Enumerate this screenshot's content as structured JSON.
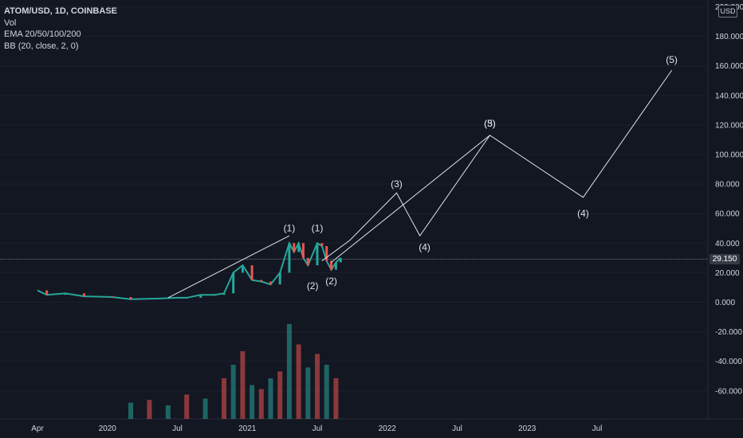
{
  "legend": {
    "symbol": "ATOM/USD, 1D, COINBASE",
    "volume": "Vol",
    "ema": "EMA 20/50/100/200",
    "bb": "BB (20, close, 2, 0)"
  },
  "toolbar": {
    "currency_button": "USD"
  },
  "price_tag": "29.150",
  "colors": {
    "background": "#131722",
    "axis_text": "#d1d4dc",
    "up": "#26a69a",
    "down": "#ef5350",
    "wave_line": "#e0e3eb",
    "price_line": "#787b86"
  },
  "chart_data": {
    "type": "line",
    "title": "",
    "xlabel": "",
    "ylabel": "",
    "y_axis_ticks": [
      "200.000",
      "180.000",
      "160.000",
      "140.000",
      "120.000",
      "100.000",
      "80.000",
      "60.000",
      "40.000",
      "20.000",
      "0.000",
      "-20.000",
      "-40.000",
      "-60.000"
    ],
    "x_axis_ticks": [
      "Apr",
      "2020",
      "Jul",
      "2021",
      "Jul",
      "2022",
      "Jul",
      "2023",
      "Jul"
    ],
    "ylim": [
      -78,
      204
    ],
    "current_price": 29.15,
    "price_series": [
      {
        "t": 0.0,
        "v": 8
      },
      {
        "t": 0.1,
        "v": 5
      },
      {
        "t": 0.3,
        "v": 6
      },
      {
        "t": 0.5,
        "v": 4
      },
      {
        "t": 0.8,
        "v": 3.5
      },
      {
        "t": 1.0,
        "v": 2
      },
      {
        "t": 1.3,
        "v": 2.5
      },
      {
        "t": 1.5,
        "v": 3
      },
      {
        "t": 1.6,
        "v": 3
      },
      {
        "t": 1.75,
        "v": 5
      },
      {
        "t": 1.9,
        "v": 5
      },
      {
        "t": 2.0,
        "v": 6
      },
      {
        "t": 2.1,
        "v": 20
      },
      {
        "t": 2.2,
        "v": 25
      },
      {
        "t": 2.3,
        "v": 15
      },
      {
        "t": 2.4,
        "v": 14
      },
      {
        "t": 2.5,
        "v": 12
      },
      {
        "t": 2.6,
        "v": 20
      },
      {
        "t": 2.7,
        "v": 40
      },
      {
        "t": 2.75,
        "v": 34
      },
      {
        "t": 2.8,
        "v": 40
      },
      {
        "t": 2.85,
        "v": 30
      },
      {
        "t": 2.9,
        "v": 25
      },
      {
        "t": 3.0,
        "v": 40
      },
      {
        "t": 3.05,
        "v": 38
      },
      {
        "t": 3.1,
        "v": 28
      },
      {
        "t": 3.15,
        "v": 22
      },
      {
        "t": 3.2,
        "v": 27
      },
      {
        "t": 3.25,
        "v": 30
      }
    ],
    "wave_lines": [
      [
        {
          "t": 1.4,
          "v": 3
        },
        {
          "t": 2.7,
          "v": 45
        }
      ],
      [
        {
          "t": 3.05,
          "v": 28
        },
        {
          "t": 3.35,
          "v": 42
        },
        {
          "t": 3.85,
          "v": 74
        },
        {
          "t": 4.1,
          "v": 45
        },
        {
          "t": 4.85,
          "v": 113
        }
      ],
      [
        {
          "t": 3.15,
          "v": 27
        },
        {
          "t": 4.85,
          "v": 113
        },
        {
          "t": 5.85,
          "v": 71
        },
        {
          "t": 6.8,
          "v": 157
        }
      ]
    ],
    "wave_labels": [
      {
        "text": "(1)",
        "t": 2.7,
        "v": 48
      },
      {
        "text": "(1)",
        "t": 3.0,
        "v": 48
      },
      {
        "text": "(2)",
        "t": 2.95,
        "v": 9
      },
      {
        "text": "(2)",
        "t": 3.15,
        "v": 12
      },
      {
        "text": "(3)",
        "t": 3.85,
        "v": 78
      },
      {
        "text": "(4)",
        "t": 4.15,
        "v": 35
      },
      {
        "text": "(5)",
        "t": 4.85,
        "v": 119
      },
      {
        "text": "(3)",
        "t": 4.85,
        "v": 119
      },
      {
        "text": "(4)",
        "t": 5.85,
        "v": 58
      },
      {
        "text": "(5)",
        "t": 6.8,
        "v": 162
      }
    ],
    "volume_bars": [
      {
        "t": 1.0,
        "v": 12
      },
      {
        "t": 1.2,
        "v": 14
      },
      {
        "t": 1.4,
        "v": 10
      },
      {
        "t": 1.6,
        "v": 18
      },
      {
        "t": 1.8,
        "v": 15
      },
      {
        "t": 2.0,
        "v": 30
      },
      {
        "t": 2.1,
        "v": 40
      },
      {
        "t": 2.2,
        "v": 50
      },
      {
        "t": 2.3,
        "v": 25
      },
      {
        "t": 2.4,
        "v": 22
      },
      {
        "t": 2.5,
        "v": 30
      },
      {
        "t": 2.6,
        "v": 35
      },
      {
        "t": 2.7,
        "v": 70
      },
      {
        "t": 2.8,
        "v": 55
      },
      {
        "t": 2.9,
        "v": 38
      },
      {
        "t": 3.0,
        "v": 48
      },
      {
        "t": 3.1,
        "v": 40
      },
      {
        "t": 3.2,
        "v": 30
      }
    ]
  }
}
